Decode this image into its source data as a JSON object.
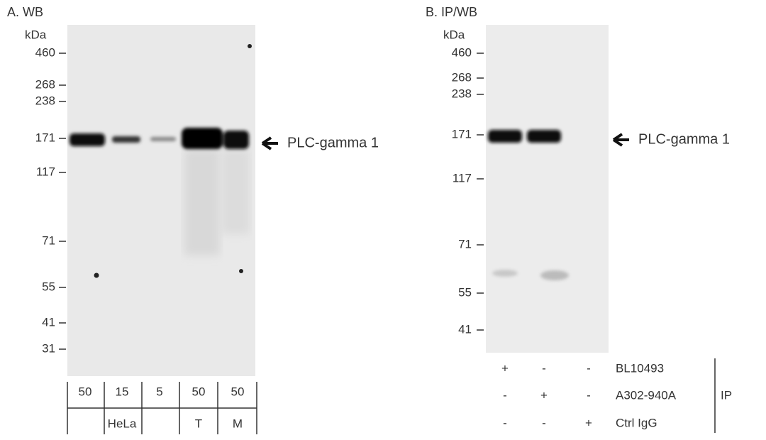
{
  "panel_a": {
    "title": "A. WB",
    "unit": "kDa",
    "markers": [
      "460",
      "268",
      "238",
      "171",
      "117",
      "71",
      "55",
      "41",
      "31"
    ],
    "band_label": "PLC-gamma 1",
    "lanes": [
      "50",
      "15",
      "5",
      "50",
      "50"
    ],
    "groups": [
      "HeLa",
      "T",
      "M"
    ]
  },
  "panel_b": {
    "title": "B. IP/WB",
    "unit": "kDa",
    "markers": [
      "460",
      "268",
      "238",
      "171",
      "117",
      "71",
      "55",
      "41"
    ],
    "band_label": "PLC-gamma 1",
    "ip_rows": [
      {
        "label": "BL10493",
        "marks": [
          "+",
          "-",
          "-"
        ]
      },
      {
        "label": "A302-940A",
        "marks": [
          "-",
          "+",
          "-"
        ]
      },
      {
        "label": "Ctrl IgG",
        "marks": [
          "-",
          "-",
          "+"
        ]
      }
    ],
    "ip_label": "IP"
  }
}
